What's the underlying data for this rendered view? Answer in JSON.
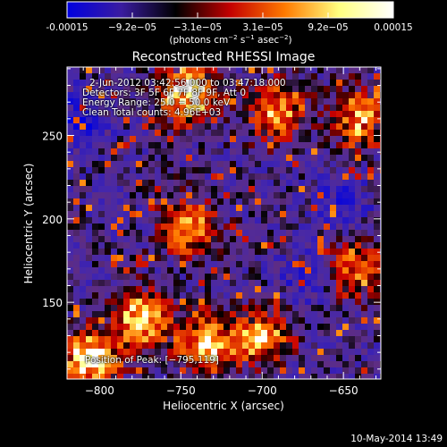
{
  "colorbar": {
    "tick_labels": [
      "-0.00015",
      "−9.2e−05",
      "−3.1e−05",
      "3.1e−05",
      "9.2e−05",
      "0.00015"
    ],
    "units_pre": "(photons cm",
    "units_exp1": "−2",
    "units_mid": " s",
    "units_exp2": "−1",
    "units_mid2": " asec",
    "units_exp3": "−2",
    "units_post": ")",
    "range": [
      -0.00015,
      0.00015
    ],
    "colors": [
      "#0000e0",
      "#3a1ca0",
      "#000000",
      "#c40000",
      "#ff7a00",
      "#ffff80",
      "#ffffff"
    ]
  },
  "image_info": {
    "time_line": "2-Jun-2012 03:42:56.000 to 03:47:18.000",
    "detectors_line": "Detectors: 3F 5F 6F 7F 8F 9F, Att 0",
    "energy_line": "Energy Range: 25.0 − 50.0 keV",
    "clean_line": "Clean       Total counts: 4.96E+03",
    "peak_line": "Position of Peak: [−795,119]"
  },
  "chart_data": {
    "type": "heatmap",
    "title": "Reconstructed RHESSI Image",
    "xlabel": "Heliocentric X (arcsec)",
    "ylabel": "Heliocentric Y (arcsec)",
    "xlim": [
      -820,
      -627
    ],
    "ylim": [
      104,
      291
    ],
    "x_ticks": [
      -800,
      -750,
      -700,
      -650
    ],
    "x_tick_labels": [
      "−800",
      "−750",
      "−700",
      "−650"
    ],
    "y_ticks": [
      150,
      200,
      250
    ],
    "y_tick_labels": [
      "150",
      "200",
      "250"
    ],
    "hot_regions": [
      {
        "x": -745,
        "y": 275,
        "value": 0.00015
      },
      {
        "x": -805,
        "y": 115,
        "value": 0.00015
      },
      {
        "x": -735,
        "y": 125,
        "value": 0.00013
      },
      {
        "x": -775,
        "y": 140,
        "value": 0.00012
      },
      {
        "x": -700,
        "y": 130,
        "value": 0.0001
      },
      {
        "x": -690,
        "y": 265,
        "value": 0.0001
      },
      {
        "x": -640,
        "y": 260,
        "value": 0.0001
      },
      {
        "x": -745,
        "y": 195,
        "value": 9e-05
      },
      {
        "x": -640,
        "y": 170,
        "value": 9e-05
      }
    ],
    "cold_regions": [
      {
        "x": -812,
        "y": 260,
        "value": -0.00012
      },
      {
        "x": -650,
        "y": 210,
        "value": -0.0001
      },
      {
        "x": -675,
        "y": 165,
        "value": -8e-05
      }
    ]
  },
  "footer": {
    "timestamp": "10-May-2014 13:49"
  }
}
